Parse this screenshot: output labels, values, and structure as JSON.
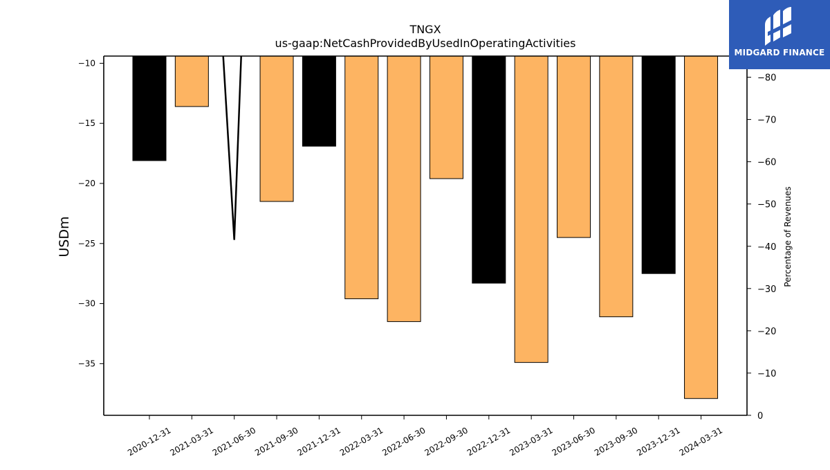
{
  "chart_data": {
    "type": "bar",
    "title": "TNGX",
    "subtitle": "us-gaap:NetCashProvidedByUsedInOperatingActivities",
    "ylabel": "USDm",
    "y2label": "Percentage of Revenues",
    "categories": [
      "2020-12-31",
      "2021-03-31",
      "2021-06-30",
      "2021-09-30",
      "2021-12-31",
      "2022-03-31",
      "2022-06-30",
      "2022-09-30",
      "2022-12-31",
      "2023-03-31",
      "2023-06-30",
      "2023-09-30",
      "2023-12-31",
      "2024-03-31"
    ],
    "values": [
      -18.1,
      -13.6,
      null,
      -21.5,
      -16.9,
      -29.6,
      -31.5,
      -19.6,
      -28.3,
      -34.9,
      -24.5,
      -31.1,
      -27.5,
      -37.9
    ],
    "bar_colors": [
      "#000000",
      "#fdb462",
      "#fdb462",
      "#fdb462",
      "#000000",
      "#fdb462",
      "#fdb462",
      "#fdb462",
      "#000000",
      "#fdb462",
      "#fdb462",
      "#fdb462",
      "#000000",
      "#fdb462"
    ],
    "ylim": [
      -39.3,
      -9.4
    ],
    "yticks": [
      -10,
      -15,
      -20,
      -25,
      -30,
      -35
    ],
    "y2lim": [
      0,
      -85
    ],
    "y2ticks": [
      0,
      -10,
      -20,
      -30,
      -40,
      -50,
      -60,
      -70,
      -80
    ],
    "line_series": {
      "values_y2": [
        null,
        null,
        -41.5,
        null,
        null,
        null,
        null,
        null,
        null,
        null,
        null,
        null,
        null,
        null
      ],
      "color": "#000000"
    },
    "grid": false
  },
  "logo": {
    "text": "MIDGARD FINANCE",
    "color": "#2e5cb8"
  }
}
